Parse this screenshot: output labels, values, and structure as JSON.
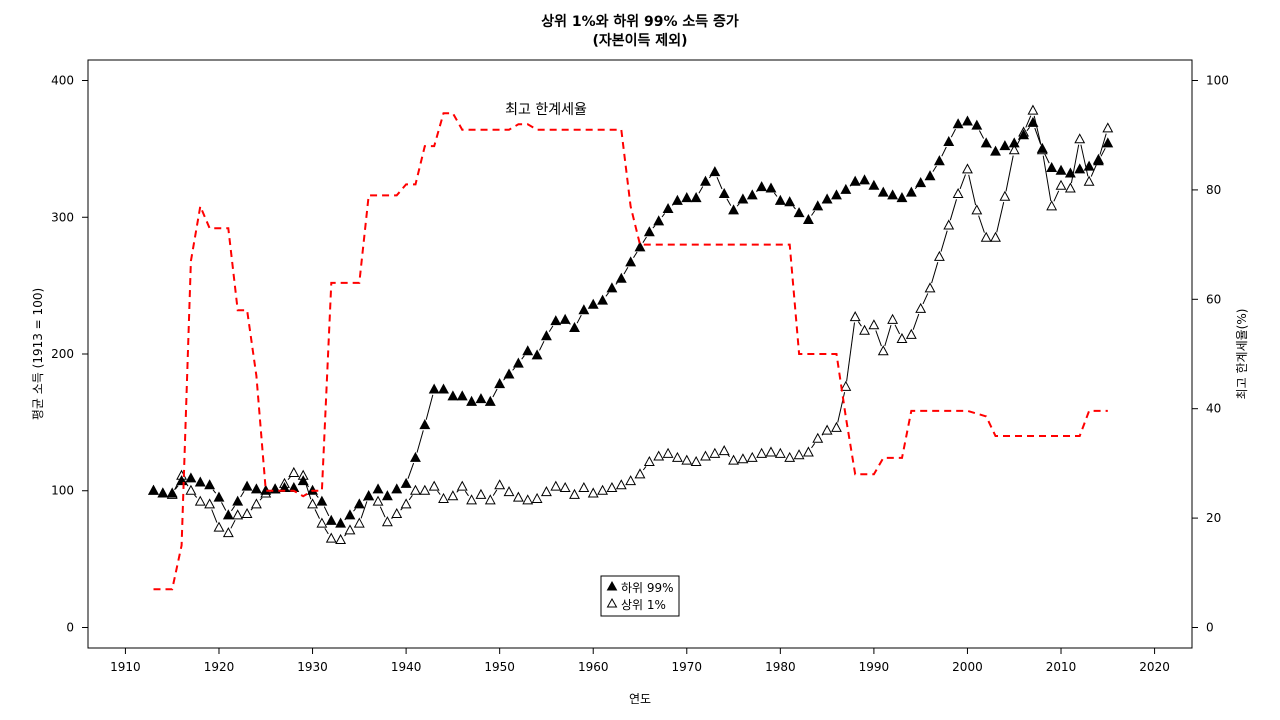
{
  "chart_data": {
    "type": "line",
    "title": "상위 1%와 하위 99% 소득 증가",
    "subtitle": "(자본이득 제외)",
    "xlabel": "연도",
    "ylabel": "평균 소득 (1913 = 100)",
    "ylabel_right": "최고 한계세율(%)",
    "annotation": "최고 한계세율",
    "xlim": [
      1906,
      2024
    ],
    "ylim": [
      -15,
      415
    ],
    "ylim_right": [
      -3.75,
      103.75
    ],
    "x_ticks": [
      1910,
      1920,
      1930,
      1940,
      1950,
      1960,
      1970,
      1980,
      1990,
      2000,
      2010,
      2020
    ],
    "y_ticks": [
      0,
      100,
      200,
      300,
      400
    ],
    "y_ticks_right": [
      0,
      20,
      40,
      60,
      80,
      100
    ],
    "grid": false,
    "legend_position": "bottom-center",
    "legend": [
      "하위 99%",
      "상위 1%"
    ],
    "series": [
      {
        "name": "하위 99%",
        "marker": "filled-triangle",
        "x": [
          1913,
          1914,
          1915,
          1916,
          1917,
          1918,
          1919,
          1920,
          1921,
          1922,
          1923,
          1924,
          1925,
          1926,
          1927,
          1928,
          1929,
          1930,
          1931,
          1932,
          1933,
          1934,
          1935,
          1936,
          1937,
          1938,
          1939,
          1940,
          1941,
          1942,
          1943,
          1944,
          1945,
          1946,
          1947,
          1948,
          1949,
          1950,
          1951,
          1952,
          1953,
          1954,
          1955,
          1956,
          1957,
          1958,
          1959,
          1960,
          1961,
          1962,
          1963,
          1964,
          1965,
          1966,
          1967,
          1968,
          1969,
          1970,
          1971,
          1972,
          1973,
          1974,
          1975,
          1976,
          1977,
          1978,
          1979,
          1980,
          1981,
          1982,
          1983,
          1984,
          1985,
          1986,
          1987,
          1988,
          1989,
          1990,
          1991,
          1992,
          1993,
          1994,
          1995,
          1996,
          1997,
          1998,
          1999,
          2000,
          2001,
          2002,
          2003,
          2004,
          2005,
          2006,
          2007,
          2008,
          2009,
          2010,
          2011,
          2012,
          2013,
          2014,
          2015
        ],
        "values": [
          100,
          98,
          98,
          107,
          109,
          106,
          104,
          95,
          82,
          92,
          103,
          101,
          100,
          101,
          102,
          102,
          107,
          100,
          92,
          78,
          76,
          82,
          90,
          96,
          101,
          96,
          101,
          105,
          124,
          148,
          174,
          174,
          169,
          169,
          165,
          167,
          165,
          178,
          185,
          193,
          202,
          199,
          213,
          224,
          225,
          219,
          232,
          236,
          239,
          248,
          255,
          267,
          278,
          289,
          297,
          306,
          312,
          314,
          314,
          326,
          333,
          317,
          305,
          313,
          316,
          322,
          321,
          312,
          311,
          303,
          298,
          308,
          313,
          316,
          320,
          326,
          327,
          323,
          318,
          316,
          314,
          318,
          325,
          330,
          341,
          355,
          368,
          370,
          367,
          354,
          348,
          352,
          354,
          360,
          369,
          350,
          336,
          334,
          332,
          335,
          337,
          341,
          354
        ]
      },
      {
        "name": "상위 1%",
        "marker": "open-triangle",
        "x": [
          1913,
          1914,
          1915,
          1916,
          1917,
          1918,
          1919,
          1920,
          1921,
          1922,
          1923,
          1924,
          1925,
          1926,
          1927,
          1928,
          1929,
          1930,
          1931,
          1932,
          1933,
          1934,
          1935,
          1936,
          1937,
          1938,
          1939,
          1940,
          1941,
          1942,
          1943,
          1944,
          1945,
          1946,
          1947,
          1948,
          1949,
          1950,
          1951,
          1952,
          1953,
          1954,
          1955,
          1956,
          1957,
          1958,
          1959,
          1960,
          1961,
          1962,
          1963,
          1964,
          1965,
          1966,
          1967,
          1968,
          1969,
          1970,
          1971,
          1972,
          1973,
          1974,
          1975,
          1976,
          1977,
          1978,
          1979,
          1980,
          1981,
          1982,
          1983,
          1984,
          1985,
          1986,
          1987,
          1988,
          1989,
          1990,
          1991,
          1992,
          1993,
          1994,
          1995,
          1996,
          1997,
          1998,
          1999,
          2000,
          2001,
          2002,
          2003,
          2004,
          2005,
          2006,
          2007,
          2008,
          2009,
          2010,
          2011,
          2012,
          2013,
          2014,
          2015
        ],
        "values": [
          100,
          98,
          97,
          111,
          100,
          92,
          90,
          73,
          69,
          82,
          83,
          90,
          98,
          101,
          105,
          113,
          111,
          90,
          76,
          65,
          64,
          71,
          76,
          96,
          92,
          77,
          83,
          90,
          100,
          100,
          103,
          94,
          96,
          103,
          93,
          97,
          93,
          104,
          99,
          95,
          93,
          94,
          99,
          103,
          102,
          97,
          102,
          98,
          100,
          102,
          104,
          107,
          112,
          121,
          125,
          127,
          124,
          122,
          121,
          125,
          127,
          129,
          122,
          123,
          124,
          127,
          128,
          127,
          124,
          126,
          128,
          138,
          144,
          146,
          176,
          227,
          217,
          221,
          202,
          225,
          211,
          214,
          233,
          248,
          271,
          294,
          317,
          335,
          305,
          285,
          285,
          315,
          349,
          362,
          378,
          349,
          308,
          323,
          321,
          357,
          326,
          342,
          365
        ]
      },
      {
        "name": "최고 한계세율",
        "axis": "right",
        "style": "dashed-red",
        "x": [
          1913,
          1914,
          1915,
          1916,
          1917,
          1918,
          1919,
          1920,
          1921,
          1922,
          1923,
          1924,
          1925,
          1926,
          1927,
          1928,
          1929,
          1930,
          1931,
          1932,
          1933,
          1934,
          1935,
          1936,
          1937,
          1938,
          1939,
          1940,
          1941,
          1942,
          1943,
          1944,
          1945,
          1946,
          1947,
          1948,
          1949,
          1950,
          1951,
          1952,
          1953,
          1954,
          1955,
          1956,
          1957,
          1958,
          1959,
          1960,
          1961,
          1962,
          1963,
          1964,
          1965,
          1966,
          1967,
          1968,
          1969,
          1970,
          1971,
          1972,
          1973,
          1974,
          1975,
          1976,
          1977,
          1978,
          1979,
          1980,
          1981,
          1982,
          1983,
          1984,
          1985,
          1986,
          1987,
          1988,
          1989,
          1990,
          1991,
          1992,
          1993,
          1994,
          1995,
          1996,
          1997,
          1998,
          1999,
          2000,
          2001,
          2002,
          2003,
          2004,
          2005,
          2006,
          2007,
          2008,
          2009,
          2010,
          2011,
          2012,
          2013,
          2014,
          2015
        ],
        "values": [
          7,
          7,
          7,
          15,
          67,
          77,
          73,
          73,
          73,
          58,
          58,
          46,
          25,
          25,
          25,
          25,
          24,
          25,
          25,
          63,
          63,
          63,
          63,
          79,
          79,
          79,
          79,
          81,
          81,
          88,
          88,
          94,
          94,
          91,
          91,
          91,
          91,
          91,
          91,
          92,
          92,
          91,
          91,
          91,
          91,
          91,
          91,
          91,
          91,
          91,
          91,
          77,
          70,
          70,
          70,
          70,
          70,
          70,
          70,
          70,
          70,
          70,
          70,
          70,
          70,
          70,
          70,
          70,
          70,
          50,
          50,
          50,
          50,
          50,
          38.5,
          28,
          28,
          28,
          31,
          31,
          31,
          39.6,
          39.6,
          39.6,
          39.6,
          39.6,
          39.6,
          39.6,
          39.1,
          38.6,
          35,
          35,
          35,
          35,
          35,
          35,
          35,
          35,
          35,
          35,
          39.6,
          39.6,
          39.6
        ]
      }
    ]
  }
}
